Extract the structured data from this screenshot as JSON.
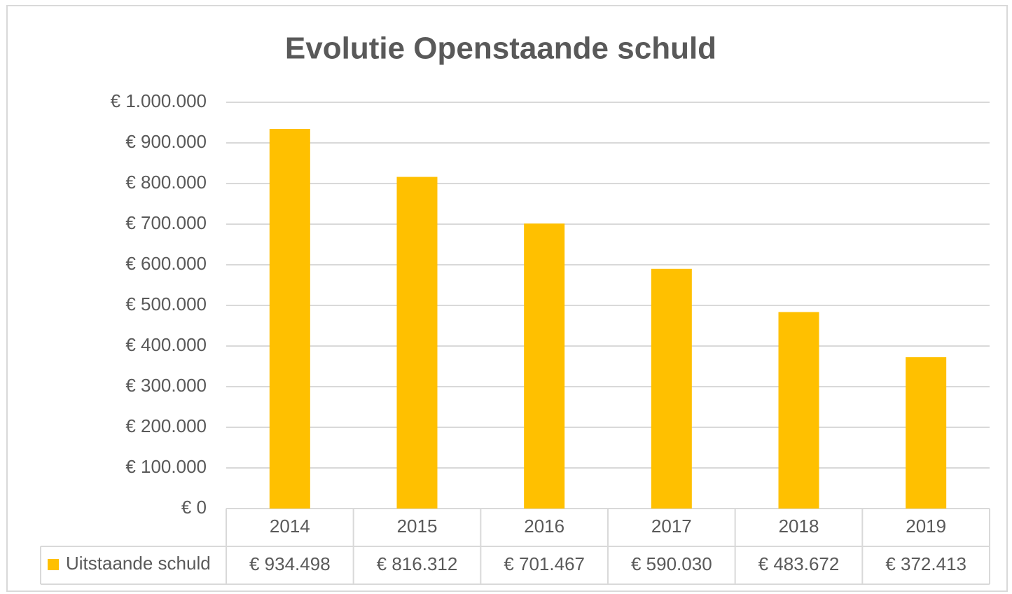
{
  "chart_data": {
    "type": "bar",
    "title": "Evolutie Openstaande schuld",
    "categories": [
      "2014",
      "2015",
      "2016",
      "2017",
      "2018",
      "2019"
    ],
    "series": [
      {
        "name": "Uitstaande schuld",
        "color": "#ffc000",
        "values": [
          934498,
          816312,
          701467,
          590030,
          483672,
          372413
        ],
        "value_labels": [
          "€ 934.498",
          "€ 816.312",
          "€ 701.467",
          "€ 590.030",
          "€ 483.672",
          "€ 372.413"
        ]
      }
    ],
    "ylim": [
      0,
      1000000
    ],
    "yticks": [
      {
        "value": 0,
        "label": "€ 0"
      },
      {
        "value": 100000,
        "label": "€ 100.000"
      },
      {
        "value": 200000,
        "label": "€ 200.000"
      },
      {
        "value": 300000,
        "label": "€ 300.000"
      },
      {
        "value": 400000,
        "label": "€ 400.000"
      },
      {
        "value": 500000,
        "label": "€ 500.000"
      },
      {
        "value": 600000,
        "label": "€ 600.000"
      },
      {
        "value": 700000,
        "label": "€ 700.000"
      },
      {
        "value": 800000,
        "label": "€ 800.000"
      },
      {
        "value": 900000,
        "label": "€ 900.000"
      },
      {
        "value": 1000000,
        "label": "€ 1.000.000"
      }
    ],
    "grid": true
  }
}
